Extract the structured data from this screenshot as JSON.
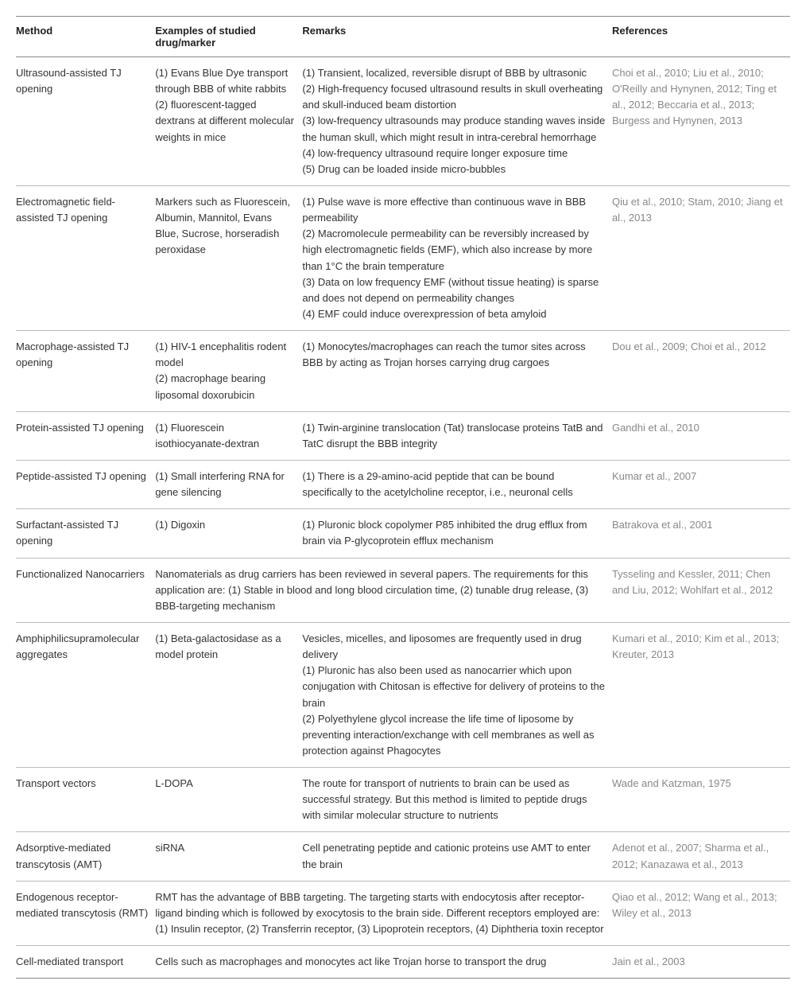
{
  "table": {
    "colwidths": [
      "18%",
      "19%",
      "40%",
      "23%"
    ],
    "header_color": "#222222",
    "body_color": "#333333",
    "ref_color": "#888888",
    "border_color_strong": "#888888",
    "border_color": "#bbbbbb",
    "background_color": "#ffffff",
    "fontsize_pt": 10,
    "columns": [
      {
        "key": "method",
        "label": "Method"
      },
      {
        "key": "examples",
        "label": "Examples of studied drug/marker"
      },
      {
        "key": "remarks",
        "label": "Remarks"
      },
      {
        "key": "refs",
        "label": "References"
      }
    ],
    "rows": [
      {
        "method": "Ultrasound-assisted TJ opening",
        "examples": "(1) Evans Blue Dye transport through BBB of white rabbits\n(2) fluorescent-tagged dextrans at different molecular weights in mice",
        "remarks": "(1) Transient, localized, reversible disrupt of BBB by ultrasonic\n(2) High-frequency focused ultrasound results in skull overheating and skull-induced beam distortion\n(3) low-frequency ultrasounds may produce standing waves inside the human skull, which might result in intra-cerebral hemorrhage\n(4) low-frequency ultrasound require longer exposure time\n(5) Drug can be loaded inside micro-bubbles",
        "refs": "Choi et al., 2010; Liu et al., 2010; O'Reilly and Hynynen, 2012; Ting et al., 2012; Beccaria et al., 2013; Burgess and Hynynen, 2013"
      },
      {
        "method": "Electromagnetic field-assisted TJ opening",
        "examples": "Markers such as Fluorescein, Albumin, Mannitol, Evans Blue, Sucrose, horseradish peroxidase",
        "remarks": "(1) Pulse wave is more effective than continuous wave in BBB permeability\n(2) Macromolecule permeability can be reversibly increased by high electromagnetic fields (EMF), which also increase by more than 1°C the brain temperature\n(3) Data on low frequency EMF (without tissue heating) is sparse and does not depend on permeability changes\n(4) EMF could induce overexpression of beta amyloid",
        "refs": "Qiu et al., 2010; Stam, 2010; Jiang et al., 2013"
      },
      {
        "method": "Macrophage-assisted TJ opening",
        "examples": "(1) HIV-1 encephalitis rodent model\n(2) macrophage bearing liposomal doxorubicin",
        "remarks": "(1) Monocytes/macrophages can reach the tumor sites across BBB by acting as Trojan horses carrying drug cargoes",
        "refs": "Dou et al., 2009; Choi et al., 2012"
      },
      {
        "method": "Protein-assisted TJ opening",
        "examples": "(1) Fluorescein isothiocyanate-dextran",
        "remarks": "(1) Twin-arginine translocation (Tat) translocase proteins TatB and TatC disrupt the BBB integrity",
        "refs": "Gandhi et al., 2010"
      },
      {
        "method": "Peptide-assisted TJ opening",
        "examples": "(1) Small interfering RNA for gene silencing",
        "remarks": "(1) There is a 29-amino-acid peptide that can be bound specifically to the acetylcholine receptor, i.e., neuronal cells",
        "refs": "Kumar et al., 2007"
      },
      {
        "method": "Surfactant-assisted TJ opening",
        "examples": "(1) Digoxin",
        "remarks": "(1) Pluronic block copolymer P85 inhibited the drug efflux from brain via P-glycoprotein efflux mechanism",
        "refs": "Batrakova et al., 2001"
      },
      {
        "method": "Functionalized Nanocarriers",
        "span": "Nanomaterials as drug carriers has been reviewed in several papers. The requirements for this application are: (1) Stable in blood and long blood circulation time, (2) tunable drug release, (3) BBB-targeting mechanism",
        "refs": "Tysseling and Kessler, 2011; Chen and Liu, 2012; Wohlfart et al., 2012"
      },
      {
        "method": "Amphiphilicsupramolecular aggregates",
        "examples": "(1) Beta-galactosidase as a model protein",
        "remarks": "Vesicles, micelles, and liposomes are frequently used in drug delivery\n(1) Pluronic has also been used as nanocarrier which upon conjugation with Chitosan is effective for delivery of proteins to the brain\n(2) Polyethylene glycol increase the life time of liposome by preventing interaction/exchange with cell membranes as well as protection against Phagocytes",
        "refs": "Kumari et al., 2010; Kim et al., 2013; Kreuter, 2013"
      },
      {
        "method": "Transport vectors",
        "examples": "L-DOPA",
        "remarks": "The route for transport of nutrients to brain can be used as successful strategy. But this method is limited to peptide drugs with similar molecular structure to nutrients",
        "refs": "Wade and Katzman, 1975"
      },
      {
        "method": "Adsorptive-mediated transcytosis (AMT)",
        "examples": "siRNA",
        "remarks": "Cell penetrating peptide and cationic proteins use AMT to enter the brain",
        "refs": "Adenot et al., 2007; Sharma et al., 2012; Kanazawa et al., 2013"
      },
      {
        "method": "Endogenous receptor-mediated transcytosis (RMT)",
        "span": "RMT has the advantage of BBB targeting. The targeting starts with endocytosis after receptor-ligand binding which is followed by exocytosis to the brain side. Different receptors employed are: (1) Insulin receptor, (2) Transferrin receptor, (3) Lipoprotein receptors, (4) Diphtheria toxin receptor",
        "refs": "Qiao et al., 2012; Wang et al., 2013; Wiley et al., 2013"
      },
      {
        "method": "Cell-mediated transport",
        "span": "Cells such as macrophages and monocytes act like Trojan horse to transport the drug",
        "refs": "Jain et al., 2003"
      }
    ]
  }
}
